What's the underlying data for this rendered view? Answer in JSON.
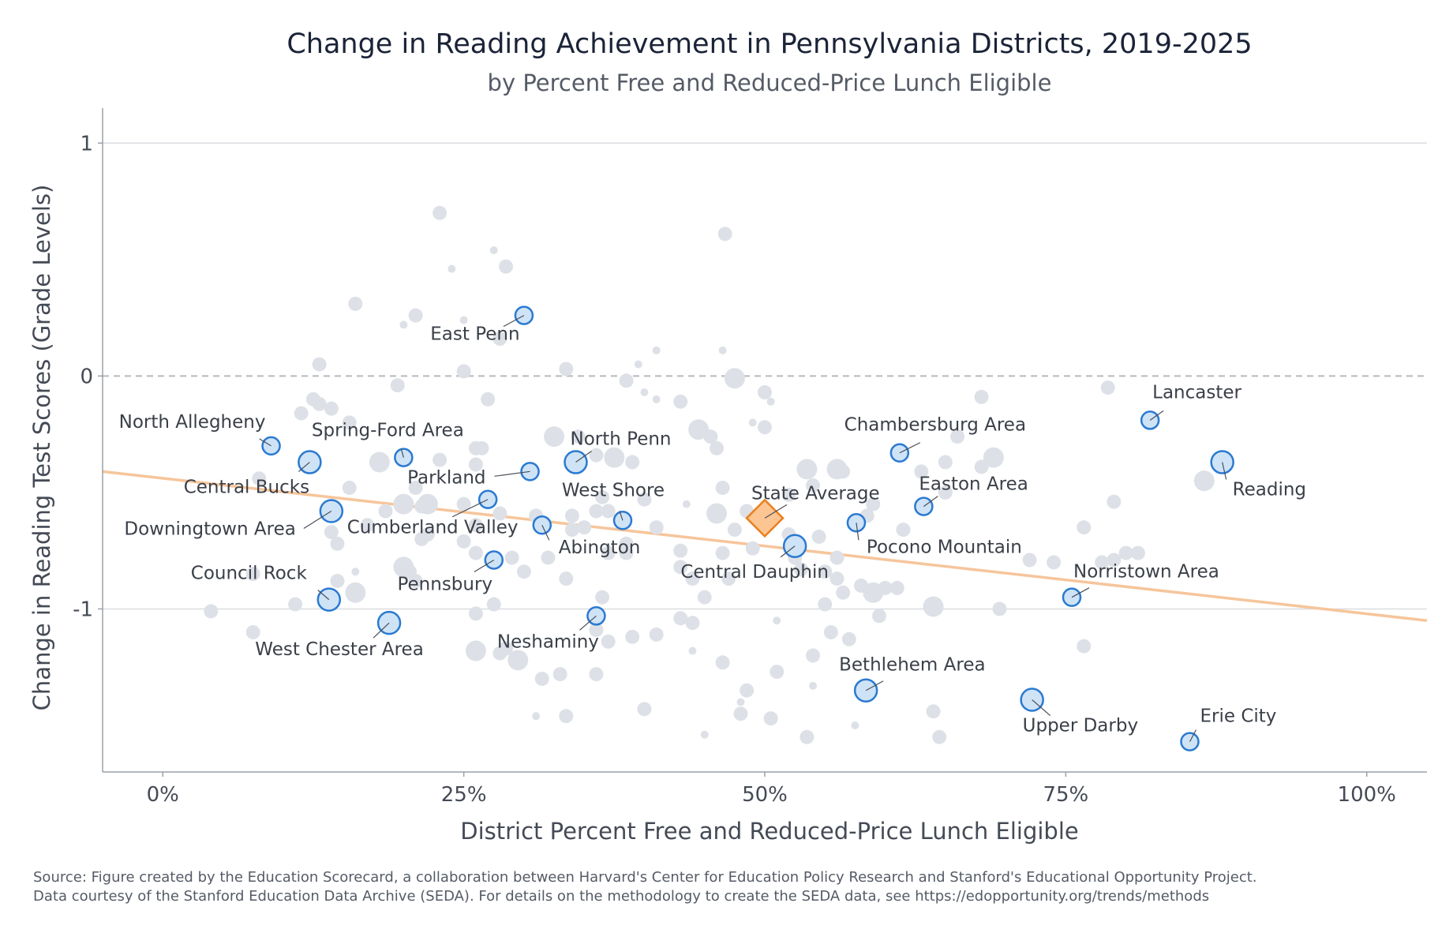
{
  "chart_data": {
    "type": "scatter",
    "title": "Change in Reading Achievement in Pennsylvania Districts, 2019-2025",
    "subtitle": "by Percent Free and Reduced-Price Lunch Eligible",
    "xlabel": "District Percent Free and Reduced-Price Lunch Eligible",
    "ylabel": "Change in Reading Test Scores (Grade Levels)",
    "xlim": [
      -0.05,
      1.05
    ],
    "ylim": [
      -1.7,
      1.15
    ],
    "x_ticks": [
      0,
      0.25,
      0.5,
      0.75,
      1.0
    ],
    "x_tick_labels": [
      "0%",
      "25%",
      "50%",
      "75%",
      "100%"
    ],
    "y_ticks": [
      1,
      0,
      -1
    ],
    "y_tick_labels": [
      "1",
      "0",
      "-1"
    ],
    "reference_line": {
      "y": 0,
      "style": "dashed"
    },
    "trend_line": {
      "x": [
        -0.05,
        1.05
      ],
      "y": [
        -0.41,
        -1.05
      ],
      "color": "#f6c59b"
    },
    "grid": "horizontal",
    "colors": {
      "background_points": "#dde1e7",
      "highlight_fill": "#cfe3f6",
      "highlight_stroke": "#2a7ad1",
      "state_fill": "#fcc592",
      "state_stroke": "#ea7f1f"
    },
    "highlighted_districts": [
      {
        "name": "East Penn",
        "x": 0.3,
        "y": 0.26,
        "size": 2
      },
      {
        "name": "North Allegheny",
        "x": 0.09,
        "y": -0.3,
        "size": 2
      },
      {
        "name": "Spring-Ford Area",
        "x": 0.2,
        "y": -0.35,
        "size": 2
      },
      {
        "name": "Central Bucks",
        "x": 0.122,
        "y": -0.37,
        "size": 3
      },
      {
        "name": "Parkland",
        "x": 0.305,
        "y": -0.41,
        "size": 2
      },
      {
        "name": "North Penn",
        "x": 0.343,
        "y": -0.37,
        "size": 3
      },
      {
        "name": "Downingtown Area",
        "x": 0.14,
        "y": -0.58,
        "size": 3
      },
      {
        "name": "Cumberland Valley",
        "x": 0.27,
        "y": -0.53,
        "size": 2
      },
      {
        "name": "West Shore",
        "x": 0.382,
        "y": -0.62,
        "size": 2
      },
      {
        "name": "Abington",
        "x": 0.315,
        "y": -0.64,
        "size": 2
      },
      {
        "name": "Pennsbury",
        "x": 0.275,
        "y": -0.79,
        "size": 2
      },
      {
        "name": "Council Rock",
        "x": 0.138,
        "y": -0.96,
        "size": 3
      },
      {
        "name": "West Chester Area",
        "x": 0.188,
        "y": -1.06,
        "size": 3
      },
      {
        "name": "Neshaminy",
        "x": 0.36,
        "y": -1.03,
        "size": 2
      },
      {
        "name": "Central Dauphin",
        "x": 0.525,
        "y": -0.73,
        "size": 3
      },
      {
        "name": "Chambersburg Area",
        "x": 0.612,
        "y": -0.33,
        "size": 2
      },
      {
        "name": "Easton Area",
        "x": 0.632,
        "y": -0.56,
        "size": 2
      },
      {
        "name": "Pocono Mountain",
        "x": 0.576,
        "y": -0.63,
        "size": 2
      },
      {
        "name": "Bethlehem Area",
        "x": 0.584,
        "y": -1.35,
        "size": 3
      },
      {
        "name": "Lancaster",
        "x": 0.82,
        "y": -0.19,
        "size": 2
      },
      {
        "name": "Reading",
        "x": 0.88,
        "y": -0.37,
        "size": 3
      },
      {
        "name": "Norristown Area",
        "x": 0.755,
        "y": -0.95,
        "size": 2
      },
      {
        "name": "Upper Darby",
        "x": 0.722,
        "y": -1.39,
        "size": 3
      },
      {
        "name": "Erie City",
        "x": 0.853,
        "y": -1.57,
        "size": 2
      }
    ],
    "state_average": {
      "name": "State Average",
      "x": 0.5,
      "y": -0.61
    },
    "other_districts": [
      [
        0.23,
        0.7,
        2
      ],
      [
        0.24,
        0.46,
        1
      ],
      [
        0.275,
        0.54,
        1
      ],
      [
        0.285,
        0.47,
        2
      ],
      [
        0.16,
        0.31,
        2
      ],
      [
        0.21,
        0.26,
        2
      ],
      [
        0.25,
        0.24,
        1
      ],
      [
        0.2,
        0.22,
        1
      ],
      [
        0.28,
        0.16,
        2
      ],
      [
        0.13,
        0.05,
        2
      ],
      [
        0.25,
        0.02,
        2
      ],
      [
        0.335,
        0.03,
        2
      ],
      [
        0.395,
        0.05,
        1
      ],
      [
        0.41,
        0.11,
        1
      ],
      [
        0.465,
        0.11,
        1
      ],
      [
        0.467,
        0.61,
        2
      ],
      [
        0.125,
        -0.1,
        2
      ],
      [
        0.13,
        -0.12,
        2
      ],
      [
        0.14,
        -0.14,
        2
      ],
      [
        0.115,
        -0.16,
        2
      ],
      [
        0.155,
        -0.2,
        2
      ],
      [
        0.195,
        -0.04,
        2
      ],
      [
        0.27,
        -0.1,
        2
      ],
      [
        0.385,
        -0.02,
        2
      ],
      [
        0.4,
        -0.07,
        1
      ],
      [
        0.41,
        -0.1,
        1
      ],
      [
        0.43,
        -0.11,
        2
      ],
      [
        0.475,
        -0.01,
        3
      ],
      [
        0.5,
        -0.07,
        2
      ],
      [
        0.505,
        -0.11,
        1
      ],
      [
        0.49,
        -0.2,
        1
      ],
      [
        0.5,
        -0.22,
        2
      ],
      [
        0.445,
        -0.23,
        3
      ],
      [
        0.455,
        -0.26,
        2
      ],
      [
        0.46,
        -0.31,
        2
      ],
      [
        0.325,
        -0.26,
        3
      ],
      [
        0.345,
        -0.26,
        2
      ],
      [
        0.26,
        -0.31,
        2
      ],
      [
        0.265,
        -0.31,
        2
      ],
      [
        0.36,
        -0.34,
        2
      ],
      [
        0.375,
        -0.35,
        3
      ],
      [
        0.39,
        -0.37,
        2
      ],
      [
        0.18,
        -0.37,
        3
      ],
      [
        0.23,
        -0.36,
        2
      ],
      [
        0.26,
        -0.38,
        2
      ],
      [
        0.21,
        -0.48,
        2
      ],
      [
        0.2,
        -0.55,
        3
      ],
      [
        0.215,
        -0.56,
        2
      ],
      [
        0.22,
        -0.55,
        3
      ],
      [
        0.25,
        -0.55,
        2
      ],
      [
        0.28,
        -0.59,
        2
      ],
      [
        0.34,
        -0.6,
        2
      ],
      [
        0.35,
        -0.65,
        2
      ],
      [
        0.36,
        -0.58,
        2
      ],
      [
        0.37,
        -0.58,
        2
      ],
      [
        0.365,
        -0.52,
        2
      ],
      [
        0.4,
        -0.53,
        2
      ],
      [
        0.41,
        -0.65,
        2
      ],
      [
        0.435,
        -0.55,
        1
      ],
      [
        0.465,
        -0.48,
        2
      ],
      [
        0.46,
        -0.59,
        3
      ],
      [
        0.485,
        -0.58,
        2
      ],
      [
        0.52,
        -0.51,
        2
      ],
      [
        0.535,
        -0.4,
        3
      ],
      [
        0.54,
        -0.47,
        2
      ],
      [
        0.56,
        -0.4,
        3
      ],
      [
        0.565,
        -0.41,
        2
      ],
      [
        0.585,
        -0.6,
        2
      ],
      [
        0.59,
        -0.55,
        2
      ],
      [
        0.65,
        -0.37,
        2
      ],
      [
        0.66,
        -0.26,
        2
      ],
      [
        0.68,
        -0.39,
        2
      ],
      [
        0.69,
        -0.35,
        3
      ],
      [
        0.63,
        -0.41,
        2
      ],
      [
        0.68,
        -0.09,
        2
      ],
      [
        0.785,
        -0.05,
        2
      ],
      [
        0.865,
        -0.45,
        3
      ],
      [
        0.79,
        -0.54,
        2
      ],
      [
        0.765,
        -0.65,
        2
      ],
      [
        0.8,
        -0.76,
        2
      ],
      [
        0.78,
        -0.8,
        2
      ],
      [
        0.74,
        -0.8,
        2
      ],
      [
        0.72,
        -0.79,
        2
      ],
      [
        0.695,
        -1.0,
        2
      ],
      [
        0.765,
        -1.16,
        2
      ],
      [
        0.64,
        -0.99,
        3
      ],
      [
        0.58,
        -0.9,
        2
      ],
      [
        0.59,
        -0.93,
        3
      ],
      [
        0.595,
        -1.03,
        2
      ],
      [
        0.61,
        -0.91,
        2
      ],
      [
        0.565,
        -0.93,
        2
      ],
      [
        0.57,
        -1.13,
        2
      ],
      [
        0.575,
        -1.5,
        1
      ],
      [
        0.64,
        -1.44,
        2
      ],
      [
        0.645,
        -1.55,
        2
      ],
      [
        0.545,
        -0.69,
        2
      ],
      [
        0.56,
        -0.78,
        2
      ],
      [
        0.55,
        -0.84,
        2
      ],
      [
        0.55,
        -0.98,
        2
      ],
      [
        0.555,
        -1.1,
        2
      ],
      [
        0.54,
        -1.2,
        2
      ],
      [
        0.54,
        -1.33,
        1
      ],
      [
        0.535,
        -1.55,
        2
      ],
      [
        0.51,
        -1.05,
        1
      ],
      [
        0.51,
        -1.27,
        2
      ],
      [
        0.505,
        -1.47,
        2
      ],
      [
        0.485,
        -1.35,
        2
      ],
      [
        0.48,
        -1.4,
        1
      ],
      [
        0.48,
        -1.45,
        2
      ],
      [
        0.465,
        -1.23,
        2
      ],
      [
        0.45,
        -1.54,
        1
      ],
      [
        0.43,
        -0.75,
        2
      ],
      [
        0.43,
        -0.82,
        2
      ],
      [
        0.44,
        -0.87,
        2
      ],
      [
        0.45,
        -0.95,
        2
      ],
      [
        0.465,
        -0.76,
        2
      ],
      [
        0.47,
        -0.87,
        2
      ],
      [
        0.43,
        -1.04,
        2
      ],
      [
        0.44,
        -1.06,
        2
      ],
      [
        0.44,
        -1.18,
        1
      ],
      [
        0.41,
        -1.11,
        2
      ],
      [
        0.39,
        -1.12,
        2
      ],
      [
        0.4,
        -1.43,
        2
      ],
      [
        0.365,
        -0.95,
        2
      ],
      [
        0.36,
        -1.09,
        2
      ],
      [
        0.37,
        -1.14,
        2
      ],
      [
        0.335,
        -0.87,
        2
      ],
      [
        0.33,
        -1.28,
        2
      ],
      [
        0.36,
        -1.28,
        2
      ],
      [
        0.335,
        -1.46,
        2
      ],
      [
        0.3,
        -0.84,
        2
      ],
      [
        0.31,
        -1.46,
        1
      ],
      [
        0.315,
        -1.3,
        2
      ],
      [
        0.295,
        -1.22,
        3
      ],
      [
        0.26,
        -1.18,
        3
      ],
      [
        0.26,
        -1.02,
        2
      ],
      [
        0.275,
        -0.98,
        2
      ],
      [
        0.28,
        -1.19,
        2
      ],
      [
        0.285,
        -1.17,
        2
      ],
      [
        0.25,
        -0.71,
        2
      ],
      [
        0.26,
        -0.76,
        2
      ],
      [
        0.29,
        -0.78,
        2
      ],
      [
        0.215,
        -0.7,
        2
      ],
      [
        0.2,
        -0.82,
        3
      ],
      [
        0.205,
        -0.84,
        2
      ],
      [
        0.21,
        -0.88,
        2
      ],
      [
        0.16,
        -0.84,
        1
      ],
      [
        0.16,
        -0.93,
        3
      ],
      [
        0.145,
        -0.88,
        2
      ],
      [
        0.145,
        -0.72,
        2
      ],
      [
        0.17,
        -0.64,
        2
      ],
      [
        0.075,
        -0.85,
        2
      ],
      [
        0.08,
        -0.44,
        2
      ],
      [
        0.11,
        -0.98,
        2
      ],
      [
        0.075,
        -1.1,
        2
      ],
      [
        0.04,
        -1.01,
        2
      ],
      [
        0.155,
        -0.48,
        2
      ],
      [
        0.185,
        -0.58,
        2
      ],
      [
        0.14,
        -0.67,
        2
      ],
      [
        0.22,
        -0.68,
        2
      ],
      [
        0.26,
        -0.64,
        2
      ],
      [
        0.32,
        -0.78,
        2
      ],
      [
        0.385,
        -0.72,
        2
      ],
      [
        0.37,
        -0.76,
        2
      ],
      [
        0.385,
        -0.76,
        2
      ],
      [
        0.31,
        -0.6,
        2
      ],
      [
        0.34,
        -0.66,
        2
      ],
      [
        0.475,
        -0.66,
        2
      ],
      [
        0.49,
        -0.74,
        2
      ],
      [
        0.52,
        -0.68,
        2
      ],
      [
        0.525,
        -0.78,
        2
      ],
      [
        0.53,
        -0.83,
        2
      ],
      [
        0.56,
        -0.87,
        2
      ],
      [
        0.6,
        -0.91,
        2
      ],
      [
        0.79,
        -0.79,
        2
      ],
      [
        0.81,
        -0.76,
        2
      ],
      [
        0.615,
        -0.66,
        2
      ],
      [
        0.65,
        -0.5,
        2
      ]
    ],
    "source": [
      "Source: Figure created by the Education Scorecard, a collaboration between Harvard's Center for Education Policy Research and Stanford's Educational Opportunity Project.",
      "Data courtesy of the Stanford Education Data Archive (SEDA). For details on the methodology to create the SEDA data, see https://edopportunity.org/trends/methods"
    ]
  }
}
